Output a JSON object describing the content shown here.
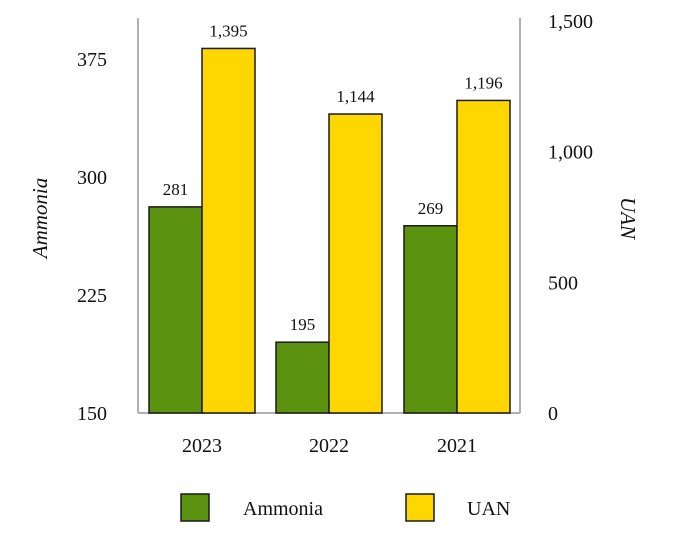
{
  "chart_data": {
    "type": "bar",
    "categories": [
      "2023",
      "2022",
      "2021"
    ],
    "series": [
      {
        "name": "Ammonia",
        "values": [
          281,
          195,
          269
        ],
        "value_labels": [
          "281",
          "195",
          "269"
        ],
        "axis": "left",
        "color": "#5b9311"
      },
      {
        "name": "UAN",
        "values": [
          1395,
          1144,
          1196
        ],
        "value_labels": [
          "1,395",
          "1,144",
          "1,196"
        ],
        "axis": "right",
        "color": "#ffd700"
      }
    ],
    "y_left": {
      "label": "Ammonia",
      "ylim": [
        150,
        390
      ],
      "ticks": [
        150,
        225,
        300,
        375
      ],
      "tick_labels": [
        "150",
        "225",
        "300",
        "375"
      ]
    },
    "y_right": {
      "label": "UAN",
      "ylim": [
        0,
        1500
      ],
      "ticks": [
        0,
        500,
        1000,
        1500
      ],
      "tick_labels": [
        "0",
        "500",
        "1,000",
        "1,500"
      ]
    },
    "grid": false,
    "legend": "bottom",
    "title": ""
  }
}
